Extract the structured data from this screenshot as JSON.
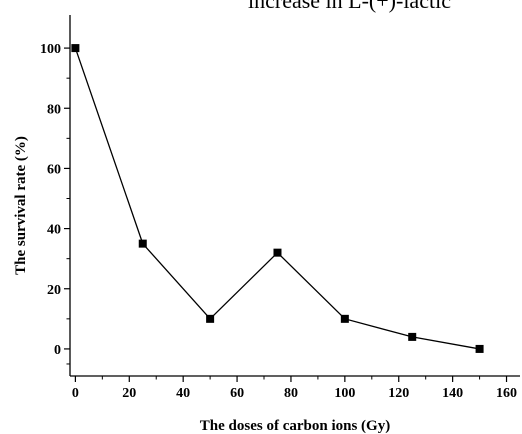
{
  "header_fragment": "increase in L-(+)-lactic",
  "chart_data": {
    "type": "line",
    "title": "",
    "xlabel": "The doses of carbon ions (Gy)",
    "ylabel": "The survival rate (%)",
    "x": [
      0,
      25,
      50,
      75,
      100,
      125,
      150
    ],
    "series": [
      {
        "values": [
          100,
          35,
          10,
          32,
          10,
          4,
          0
        ]
      }
    ],
    "xlim": [
      -2,
      165
    ],
    "ylim": [
      -9,
      111
    ],
    "xticks": [
      0,
      20,
      40,
      60,
      80,
      100,
      120,
      140,
      160
    ],
    "yticks": [
      0,
      20,
      40,
      60,
      80,
      100
    ],
    "xtick_labels": [
      "0",
      "20",
      "40",
      "60",
      "80",
      "100",
      "120",
      "140",
      "160"
    ],
    "ytick_labels": [
      "0",
      "20",
      "40",
      "60",
      "80",
      "100"
    ],
    "marker": "square",
    "line_color": "#000000",
    "grid": false,
    "legend": "none"
  }
}
